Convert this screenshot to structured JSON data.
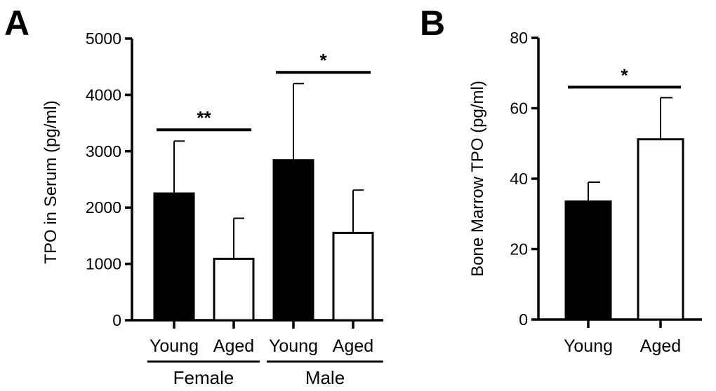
{
  "chart_data": [
    {
      "panel": "A",
      "type": "bar",
      "ylabel": "TPO in Serum (pg/ml)",
      "ylim": [
        0,
        5000
      ],
      "yticks": [
        "0",
        "1000",
        "2000",
        "3000",
        "4000",
        "5000"
      ],
      "categories": [
        "Young",
        "Aged",
        "Young",
        "Aged"
      ],
      "groups": [
        "Female",
        "Male"
      ],
      "values": [
        2250,
        1090,
        2840,
        1550
      ],
      "errors": [
        3180,
        1810,
        4200,
        2310
      ],
      "fills": [
        "#000000",
        "#ffffff",
        "#000000",
        "#ffffff"
      ],
      "significance": [
        {
          "label": "**",
          "from": 0,
          "to": 1,
          "y": 3380
        },
        {
          "label": "*",
          "from": 2,
          "to": 3,
          "y": 4400
        }
      ]
    },
    {
      "panel": "B",
      "type": "bar",
      "ylabel": "Bone Marrow TPO (pg/ml)",
      "ylim": [
        0,
        80
      ],
      "yticks": [
        "0",
        "20",
        "40",
        "60",
        "80"
      ],
      "categories": [
        "Young",
        "Aged"
      ],
      "values": [
        33.5,
        51.2
      ],
      "errors": [
        39,
        63
      ],
      "fills": [
        "#000000",
        "#ffffff"
      ],
      "significance": [
        {
          "label": "*",
          "from": 0,
          "to": 1,
          "y": 66
        }
      ]
    }
  ]
}
